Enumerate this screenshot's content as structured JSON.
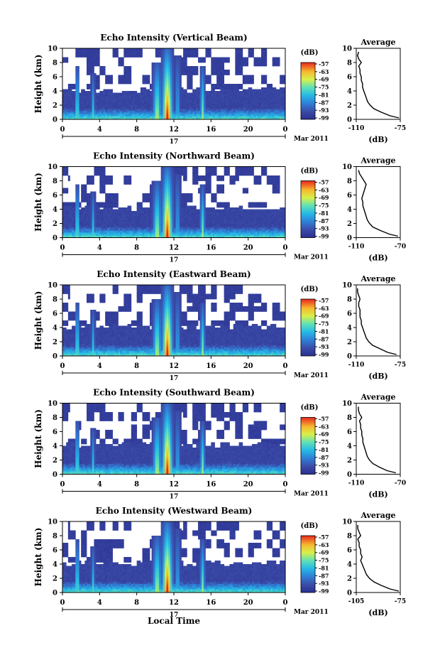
{
  "figure": {
    "xlabel_common": "Local Time",
    "day_label": "17",
    "month_label": "Mar 2011",
    "ylabel": "Height (km)",
    "colorbar_unit": "(dB)",
    "colorbar_ticks": [
      "-57",
      "-63",
      "-69",
      "-75",
      "-81",
      "-87",
      "-93",
      "-99"
    ],
    "profile_title": "Average",
    "profile_xlabel": "(dB)"
  },
  "chart_data": [
    {
      "type": "heatmap",
      "title": "Echo Intensity (Vertical Beam)",
      "xlim": [
        0,
        24
      ],
      "ylim": [
        0,
        10
      ],
      "xticks": [
        "0",
        "4",
        "8",
        "12",
        "16",
        "20",
        "0"
      ],
      "yticks": [
        "0",
        "2",
        "4",
        "6",
        "8",
        "10"
      ],
      "colorbar_range_db": [
        -99,
        -57
      ],
      "profile": {
        "xlim": [
          -110,
          -75
        ],
        "xticks": [
          "-110",
          "-75"
        ],
        "height_km": [
          0.2,
          0.5,
          1,
          1.5,
          2,
          2.5,
          3,
          3.5,
          4,
          4.5,
          5,
          5.5,
          6,
          6.5,
          7,
          7.5,
          8,
          8.5,
          9,
          9.5
        ],
        "db": [
          -76,
          -83,
          -90,
          -96,
          -99,
          -101,
          -102,
          -103,
          -104,
          -105,
          -105,
          -106,
          -106,
          -107,
          -107,
          -108,
          -106,
          -108,
          -109,
          -108
        ]
      }
    },
    {
      "type": "heatmap",
      "title": "Echo Intensity (Northward Beam)",
      "xlim": [
        0,
        24
      ],
      "ylim": [
        0,
        10
      ],
      "xticks": [
        "0",
        "4",
        "8",
        "12",
        "16",
        "20",
        "0"
      ],
      "yticks": [
        "0",
        "2",
        "4",
        "6",
        "8",
        "10"
      ],
      "colorbar_range_db": [
        -99,
        -57
      ],
      "profile": {
        "xlim": [
          -110,
          -70
        ],
        "xticks": [
          "-110",
          "-70"
        ],
        "height_km": [
          0.2,
          0.5,
          1,
          1.5,
          2,
          2.5,
          3,
          3.5,
          4,
          4.5,
          5,
          5.5,
          6,
          6.5,
          7,
          7.5,
          8,
          8.5,
          9,
          9.5
        ],
        "db": [
          -72,
          -80,
          -88,
          -95,
          -98,
          -100,
          -101,
          -102,
          -103,
          -104,
          -104,
          -105,
          -104,
          -103,
          -102,
          -101,
          -103,
          -105,
          -107,
          -108
        ]
      }
    },
    {
      "type": "heatmap",
      "title": "Echo Intensity (Eastward Beam)",
      "xlim": [
        0,
        24
      ],
      "ylim": [
        0,
        10
      ],
      "xticks": [
        "0",
        "4",
        "8",
        "12",
        "16",
        "20",
        "0"
      ],
      "yticks": [
        "0",
        "2",
        "4",
        "6",
        "8",
        "10"
      ],
      "colorbar_range_db": [
        -99,
        -57
      ],
      "profile": {
        "xlim": [
          -110,
          -75
        ],
        "xticks": [
          "-110",
          "-75"
        ],
        "height_km": [
          0.2,
          0.5,
          1,
          1.5,
          2,
          2.5,
          3,
          3.5,
          4,
          4.5,
          5,
          5.5,
          6,
          6.5,
          7,
          7.5,
          8,
          8.5,
          9,
          9.5
        ],
        "db": [
          -78,
          -85,
          -91,
          -97,
          -100,
          -102,
          -103,
          -104,
          -105,
          -106,
          -106,
          -107,
          -107,
          -107,
          -108,
          -108,
          -107,
          -108,
          -109,
          -109
        ]
      }
    },
    {
      "type": "heatmap",
      "title": "Echo Intensity (Southward Beam)",
      "xlim": [
        0,
        24
      ],
      "ylim": [
        0,
        10
      ],
      "xticks": [
        "0",
        "4",
        "8",
        "12",
        "16",
        "20",
        "0"
      ],
      "yticks": [
        "0",
        "2",
        "4",
        "6",
        "8",
        "10"
      ],
      "colorbar_range_db": [
        -99,
        -57
      ],
      "profile": {
        "xlim": [
          -110,
          -70
        ],
        "xticks": [
          "-110",
          "-70"
        ],
        "height_km": [
          0.2,
          0.5,
          1,
          1.5,
          2,
          2.5,
          3,
          3.5,
          4,
          4.5,
          5,
          5.5,
          6,
          6.5,
          7,
          7.5,
          8,
          8.5,
          9,
          9.5
        ],
        "db": [
          -74,
          -82,
          -89,
          -95,
          -98,
          -100,
          -101,
          -102,
          -103,
          -104,
          -104,
          -105,
          -105,
          -106,
          -106,
          -107,
          -105,
          -107,
          -108,
          -108
        ]
      }
    },
    {
      "type": "heatmap",
      "title": "Echo Intensity (Westward Beam)",
      "xlim": [
        0,
        24
      ],
      "ylim": [
        0,
        10
      ],
      "xticks": [
        "0",
        "4",
        "8",
        "12",
        "16",
        "20",
        "0"
      ],
      "yticks": [
        "0",
        "2",
        "4",
        "6",
        "8",
        "10"
      ],
      "colorbar_range_db": [
        -99,
        -57
      ],
      "profile": {
        "xlim": [
          -105,
          -75
        ],
        "xticks": [
          "-105",
          "-75"
        ],
        "height_km": [
          0.2,
          0.5,
          1,
          1.5,
          2,
          2.5,
          3,
          3.5,
          4,
          4.5,
          5,
          5.5,
          6,
          6.5,
          7,
          7.5,
          8,
          8.5,
          9,
          9.5
        ],
        "db": [
          -76,
          -82,
          -88,
          -93,
          -96,
          -98,
          -99,
          -100,
          -101,
          -102,
          -101,
          -102,
          -102,
          -103,
          -103,
          -104,
          -102,
          -103,
          -104,
          -104
        ]
      }
    }
  ]
}
